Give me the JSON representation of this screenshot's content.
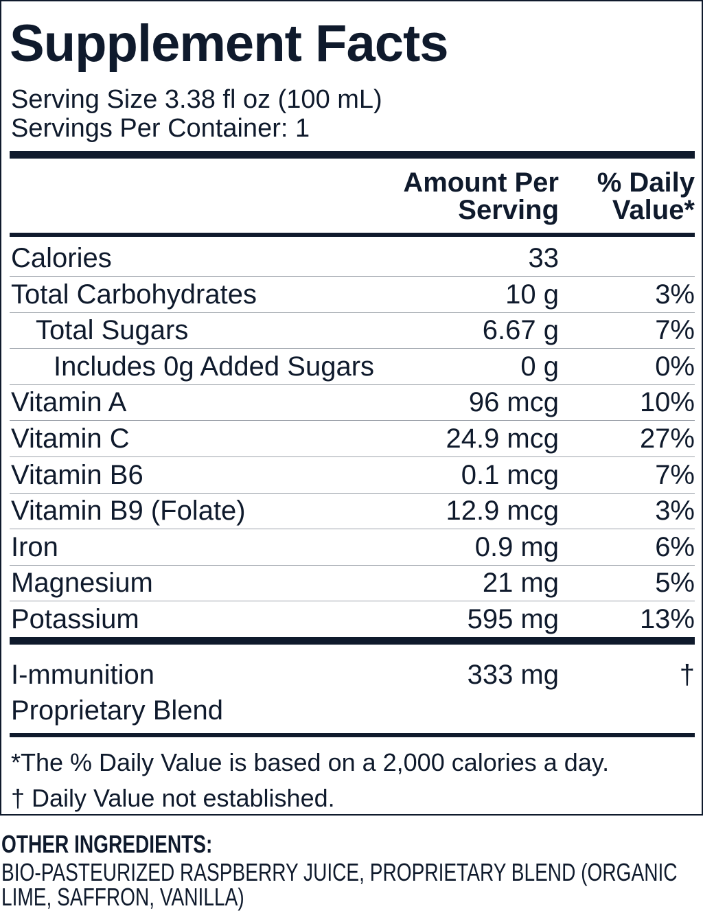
{
  "title": "Supplement Facts",
  "serving_size": "Serving Size 3.38 fl oz (100 mL)",
  "servings_per_container": "Servings Per Container: 1",
  "header": {
    "amount": "Amount Per Serving",
    "daily_value": "% Daily Value*"
  },
  "rows": [
    {
      "name": "Calories",
      "amount": "33",
      "daily_value": null
    },
    {
      "name": "Total Carbohydrates",
      "amount": "10 g",
      "daily_value": "3%"
    },
    {
      "name": "Total Sugars",
      "amount": "6.67 g",
      "daily_value": "7%"
    },
    {
      "name": "Includes 0g Added Sugars",
      "amount": "0 g",
      "daily_value": "0%"
    },
    {
      "name": "Vitamin A",
      "amount": "96 mcg",
      "daily_value": "10%"
    },
    {
      "name": "Vitamin C",
      "amount": "24.9 mcg",
      "daily_value": "27%"
    },
    {
      "name": "Vitamin B6",
      "amount": "0.1 mcg",
      "daily_value": "7%"
    },
    {
      "name": "Vitamin B9 (Folate)",
      "amount": "12.9 mcg",
      "daily_value": "3%"
    },
    {
      "name": "Iron",
      "amount": "0.9 mg",
      "daily_value": "6%"
    },
    {
      "name": "Magnesium",
      "amount": "21 mg",
      "daily_value": "5%"
    },
    {
      "name": "Potassium",
      "amount": "595 mg",
      "daily_value": "13%"
    }
  ],
  "blend": {
    "name": "I-mmunition Proprietary Blend",
    "amount": "333 mg",
    "daily_value": "†"
  },
  "footnotes": [
    "*The % Daily Value is based on a 2,000 calories a day.",
    "† Daily Value not established."
  ],
  "other_ingredients": {
    "heading": "OTHER INGREDIENTS:",
    "text": "BIO-PASTEURIZED RASPBERRY JUICE, PROPRIETARY BLEND (ORGANIC LIME, SAFFRON, VANILLA)"
  }
}
